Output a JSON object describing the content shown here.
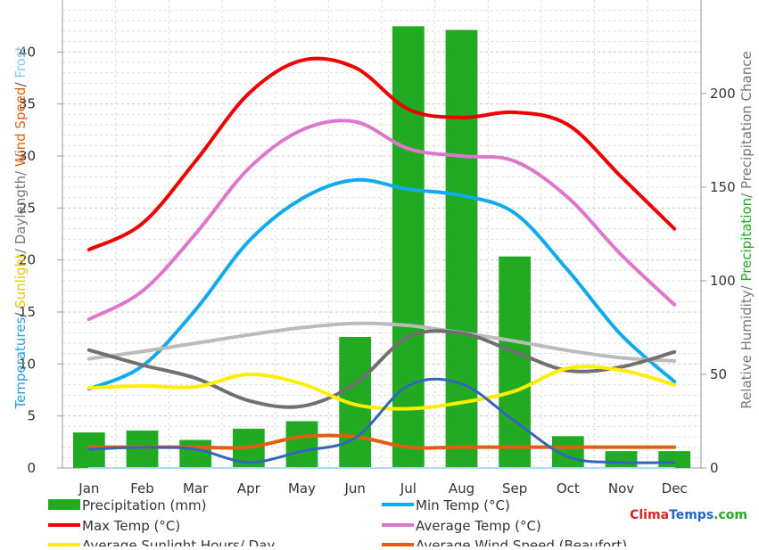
{
  "chart_data": {
    "type": "line",
    "categories": [
      "Jan",
      "Feb",
      "Mar",
      "Apr",
      "May",
      "Jun",
      "Jul",
      "Aug",
      "Sep",
      "Oct",
      "Nov",
      "Dec"
    ],
    "left_axis": {
      "ylim": [
        0,
        45
      ],
      "ticks": [
        "0",
        "5",
        "10",
        "15",
        "20",
        "25",
        "30",
        "35",
        "40"
      ],
      "label_parts": [
        {
          "text": "Temperatures",
          "color": "#2a9fd6"
        },
        {
          "text": "/ ",
          "color": "#555555"
        },
        {
          "text": "Sunlight",
          "color": "#e8c800"
        },
        {
          "text": "/ Daylength/ ",
          "color": "#777777"
        },
        {
          "text": "Wind Speed",
          "color": "#e06010"
        },
        {
          "text": "/ ",
          "color": "#555555"
        },
        {
          "text": "Frost",
          "color": "#88c8e8"
        }
      ]
    },
    "right_axis": {
      "ylim": [
        0,
        250
      ],
      "ticks": [
        "0",
        "50",
        "100",
        "150",
        "200"
      ],
      "label_parts": [
        {
          "text": "Relative Humidity/ ",
          "color": "#777777"
        },
        {
          "text": "Precipitation",
          "color": "#22aa22"
        },
        {
          "text": "/ Precipitation Chance",
          "color": "#777777"
        }
      ]
    },
    "bars": {
      "name": "Precipitation (mm)",
      "color": "#22aa22",
      "axis": "right",
      "values": [
        19,
        20,
        15,
        21,
        25,
        70,
        236,
        234,
        113,
        17,
        9,
        9
      ]
    },
    "series": [
      {
        "name": "Max Temp (°C)",
        "color": "#ee0000",
        "axis": "left",
        "width": 4,
        "values": [
          21.0,
          23.5,
          29.5,
          36.0,
          39.2,
          38.5,
          34.5,
          33.7,
          34.2,
          33.0,
          28.0,
          23.0
        ]
      },
      {
        "name": "Average Temp (°C)",
        "color": "#dd77cc",
        "axis": "left",
        "width": 4,
        "values": [
          14.3,
          17.0,
          22.5,
          28.8,
          32.5,
          33.3,
          30.7,
          30.0,
          29.5,
          26.0,
          20.5,
          15.7
        ]
      },
      {
        "name": "Min Temp (°C)",
        "color": "#11aaee",
        "axis": "left",
        "width": 4,
        "values": [
          7.6,
          9.8,
          15.2,
          21.8,
          25.9,
          27.7,
          26.8,
          26.2,
          24.5,
          19.0,
          12.8,
          8.3
        ]
      },
      {
        "name": "Daylength",
        "color": "#bbbbbb",
        "axis": "left",
        "width": 4,
        "values": [
          10.5,
          11.2,
          12.0,
          12.8,
          13.5,
          13.9,
          13.7,
          13.0,
          12.2,
          11.3,
          10.6,
          10.3
        ]
      },
      {
        "name": "Relative Humidity",
        "color": "#707070",
        "axis": "right",
        "width": 4,
        "values": [
          63,
          55,
          48,
          36,
          33,
          45,
          70,
          72,
          62,
          52,
          54,
          62
        ]
      },
      {
        "name": "Average Sunlight Hours/ Day",
        "color": "#ffee00",
        "axis": "left",
        "width": 4,
        "values": [
          7.7,
          7.9,
          7.8,
          9.0,
          8.1,
          6.1,
          5.7,
          6.3,
          7.4,
          9.6,
          9.4,
          8.0
        ]
      },
      {
        "name": "Average Wind Speed (Beaufort)",
        "color": "#e06010",
        "axis": "left",
        "width": 4,
        "values": [
          2.0,
          2.0,
          2.0,
          2.0,
          3.0,
          3.0,
          2.0,
          2.0,
          2.0,
          2.0,
          2.0,
          2.0
        ]
      },
      {
        "name": "Precipitation Chance",
        "color": "#3366bb",
        "axis": "right",
        "width": 3,
        "values": [
          10,
          11,
          10,
          3,
          9,
          16,
          44,
          45,
          25,
          6,
          3,
          3
        ]
      },
      {
        "name": "Frost",
        "color": "#aaddee",
        "axis": "left",
        "width": 2,
        "values": [
          0,
          0,
          0,
          0,
          0,
          0,
          0,
          0,
          0,
          0,
          0,
          0
        ]
      }
    ],
    "legend": [
      {
        "label": "Precipitation (mm)",
        "color": "#22aa22",
        "kind": "bar"
      },
      {
        "label": "Min Temp (°C)",
        "color": "#11aaee",
        "kind": "line"
      },
      {
        "label": "Max Temp (°C)",
        "color": "#ee0000",
        "kind": "line"
      },
      {
        "label": "Average Temp (°C)",
        "color": "#dd77cc",
        "kind": "line"
      },
      {
        "label": "Average Sunlight Hours/ Day",
        "color": "#ffee00",
        "kind": "line"
      },
      {
        "label": "Average Wind Speed (Beaufort)",
        "color": "#e06010",
        "kind": "line"
      }
    ],
    "legend_placement": "bottom",
    "grid": true
  },
  "brand": {
    "parts": [
      {
        "text": "Clima",
        "color": "#dd2222"
      },
      {
        "text": "Temps",
        "color": "#2266cc"
      },
      {
        "text": ".com",
        "color": "#22aa22"
      }
    ]
  }
}
